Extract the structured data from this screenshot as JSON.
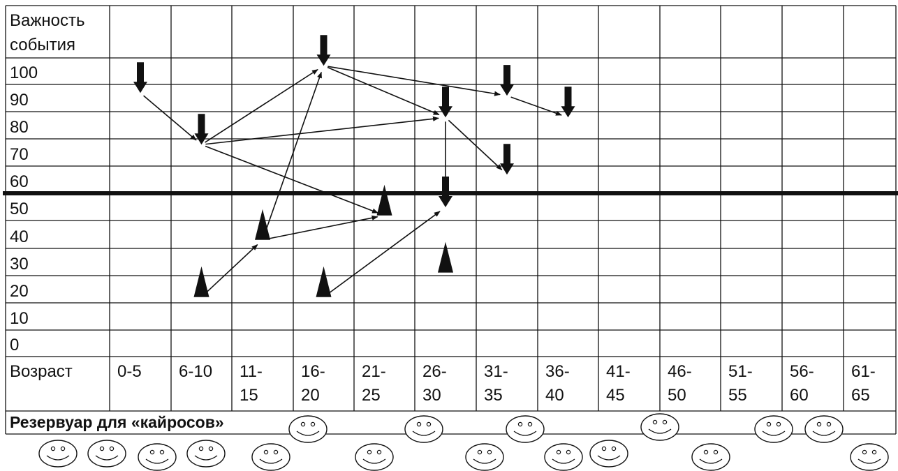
{
  "chart_data": {
    "type": "table",
    "ylabel_lines": [
      "Важность",
      "события"
    ],
    "y_ticks": [
      "100",
      "90",
      "80",
      "70",
      "60",
      "50",
      "40",
      "30",
      "20",
      "10",
      "0"
    ],
    "xlabel": "Возраст",
    "categories": [
      [
        "0-5"
      ],
      [
        "6-10"
      ],
      [
        "11-",
        "15"
      ],
      [
        "16-",
        "20"
      ],
      [
        "21-",
        "25"
      ],
      [
        "26-",
        "30"
      ],
      [
        "31-",
        "35"
      ],
      [
        "36-",
        "40"
      ],
      [
        "41-",
        "45"
      ],
      [
        "46-",
        "50"
      ],
      [
        "51-",
        "55"
      ],
      [
        "56-",
        "60"
      ],
      [
        "61-",
        "65"
      ]
    ],
    "threshold": 55,
    "reservoir_label": "Резервуар для «кайросов»",
    "events": [
      {
        "id": "d1",
        "kind": "down",
        "age": "0-5",
        "importance": 92
      },
      {
        "id": "d2",
        "kind": "down",
        "age": "6-10",
        "importance": 73
      },
      {
        "id": "d3",
        "kind": "down",
        "age": "16-20",
        "importance": 102
      },
      {
        "id": "d4",
        "kind": "down",
        "age": "26-30",
        "importance": 83
      },
      {
        "id": "d5",
        "kind": "down",
        "age": "26-30",
        "importance": 50
      },
      {
        "id": "d6",
        "kind": "down",
        "age": "31-35",
        "importance": 91
      },
      {
        "id": "d7",
        "kind": "down",
        "age": "31-35",
        "importance": 62
      },
      {
        "id": "d8",
        "kind": "down",
        "age": "36-40",
        "importance": 83
      },
      {
        "id": "u1",
        "kind": "up",
        "age": "6-10",
        "importance": 17
      },
      {
        "id": "u2",
        "kind": "up",
        "age": "11-15",
        "importance": 38
      },
      {
        "id": "u3",
        "kind": "up",
        "age": "16-20",
        "importance": 17
      },
      {
        "id": "u4",
        "kind": "up",
        "age": "21-25",
        "importance": 47
      },
      {
        "id": "u5",
        "kind": "up",
        "age": "26-30",
        "importance": 26
      }
    ],
    "links": [
      {
        "from": "d1",
        "to": "d2"
      },
      {
        "from": "d2",
        "to": "d3"
      },
      {
        "from": "d2",
        "to": "d4"
      },
      {
        "from": "d2",
        "to": "u4"
      },
      {
        "from": "d3",
        "to": "d4"
      },
      {
        "from": "d3",
        "to": "d6"
      },
      {
        "from": "d6",
        "to": "d8"
      },
      {
        "from": "d4",
        "to": "d5"
      },
      {
        "from": "d4",
        "to": "d7"
      },
      {
        "from": "u1",
        "to": "u2"
      },
      {
        "from": "u2",
        "to": "u4"
      },
      {
        "from": "u2",
        "to": "d3"
      },
      {
        "from": "u3",
        "to": "d5"
      }
    ],
    "smileys": 17
  },
  "colors": {
    "ink": "#111111",
    "background": "#ffffff"
  }
}
